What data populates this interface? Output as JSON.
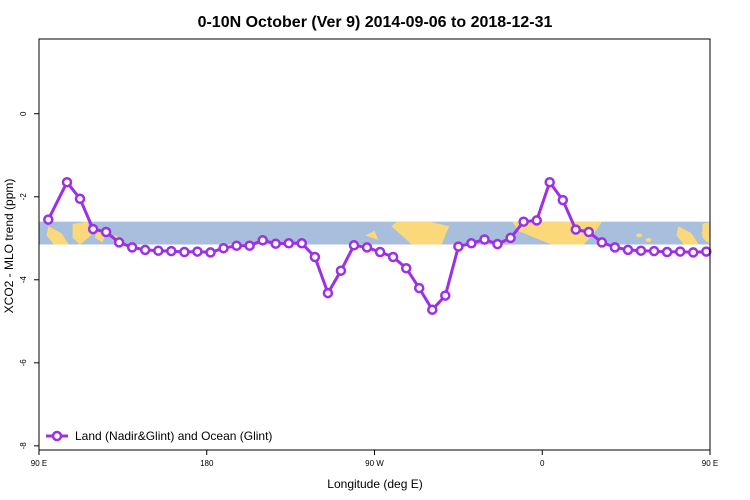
{
  "chart_data": {
    "type": "line",
    "title": "0-10N October (Ver 9)   2014-09-06 to 2018-12-31",
    "xlabel": "Longitude (deg E)",
    "ylabel": "XCO2 - MLO trend (ppm)",
    "xlim": [
      90,
      450
    ],
    "ylim": [
      -8.1,
      1.8
    ],
    "x_ticks": [
      {
        "value": 90,
        "label": "90 E"
      },
      {
        "value": 180,
        "label": "180"
      },
      {
        "value": 270,
        "label": "90 W"
      },
      {
        "value": 360,
        "label": "0"
      },
      {
        "value": 450,
        "label": "90 E"
      },
      {
        "value": 540,
        "label": "180"
      }
    ],
    "y_ticks": [
      {
        "value": 0,
        "label": "0"
      },
      {
        "value": -2,
        "label": "-2"
      },
      {
        "value": -4,
        "label": "-4"
      },
      {
        "value": -6,
        "label": "-6"
      },
      {
        "value": -8,
        "label": "-8"
      }
    ],
    "grid": false,
    "legend_position": "bottom-left",
    "background_band": {
      "y_range": [
        -3.15,
        -2.6
      ],
      "ocean_color": "#a7bedd",
      "land_color": "#fbd97a"
    },
    "series": [
      {
        "name": "Land (Nadir&Glint) and Ocean (Glint)",
        "color": "#9b30e6",
        "x": [
          95,
          105,
          112,
          119,
          126,
          133,
          140,
          147,
          154,
          161,
          168,
          175,
          182,
          189,
          196,
          203,
          210,
          217,
          224,
          231,
          238,
          245,
          252,
          259,
          266,
          273,
          280,
          287,
          294,
          301,
          308,
          315,
          322,
          329,
          336,
          343,
          350,
          357,
          364,
          371,
          378,
          385,
          392,
          399,
          406,
          413,
          420,
          427,
          434,
          441,
          448
        ],
        "y": [
          -2.55,
          -1.65,
          -2.05,
          -2.78,
          -2.85,
          -3.1,
          -3.22,
          -3.28,
          -3.3,
          -3.31,
          -3.33,
          -3.32,
          -3.34,
          -3.24,
          -3.18,
          -3.18,
          -3.05,
          -3.13,
          -3.12,
          -3.12,
          -3.45,
          -4.32,
          -3.78,
          -3.17,
          -3.22,
          -3.33,
          -3.45,
          -3.72,
          -4.2,
          -4.72,
          -4.38,
          -3.2,
          -3.12,
          -3.03,
          -3.14,
          -2.99,
          -2.6,
          -2.57,
          -1.65,
          -2.08,
          -2.79,
          -2.85,
          -3.1,
          -3.22,
          -3.28,
          -3.3,
          -3.31,
          -3.33,
          -3.32,
          -3.34,
          -3.32
        ]
      }
    ]
  }
}
